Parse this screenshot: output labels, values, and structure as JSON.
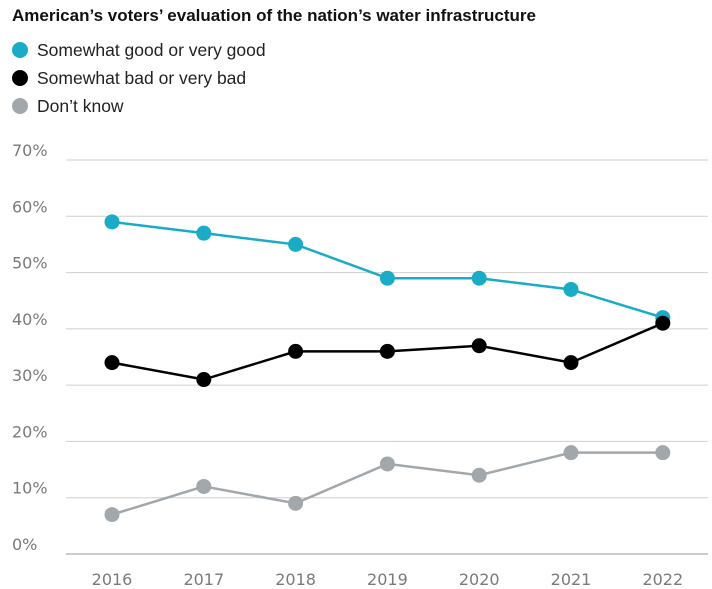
{
  "chart_data": {
    "type": "line",
    "title": "American’s voters’ evaluation of the nation’s water infrastructure",
    "xlabel": "",
    "ylabel": "",
    "categories": [
      "2016",
      "2017",
      "2018",
      "2019",
      "2020",
      "2021",
      "2022"
    ],
    "ylim": [
      0,
      70
    ],
    "yticks": [
      "0%",
      "10%",
      "20%",
      "30%",
      "40%",
      "50%",
      "60%",
      "70%"
    ],
    "grid": true,
    "legend_position": "top-left",
    "series": [
      {
        "name": "Somewhat good or very good",
        "color": "#1aacc6",
        "values": [
          59,
          57,
          55,
          49,
          49,
          47,
          42
        ]
      },
      {
        "name": "Somewhat bad or very bad",
        "color": "#000000",
        "values": [
          34,
          31,
          36,
          36,
          37,
          34,
          41
        ]
      },
      {
        "name": "Don’t know",
        "color": "#a2a7ab",
        "values": [
          7,
          12,
          9,
          16,
          14,
          18,
          18
        ]
      }
    ]
  }
}
